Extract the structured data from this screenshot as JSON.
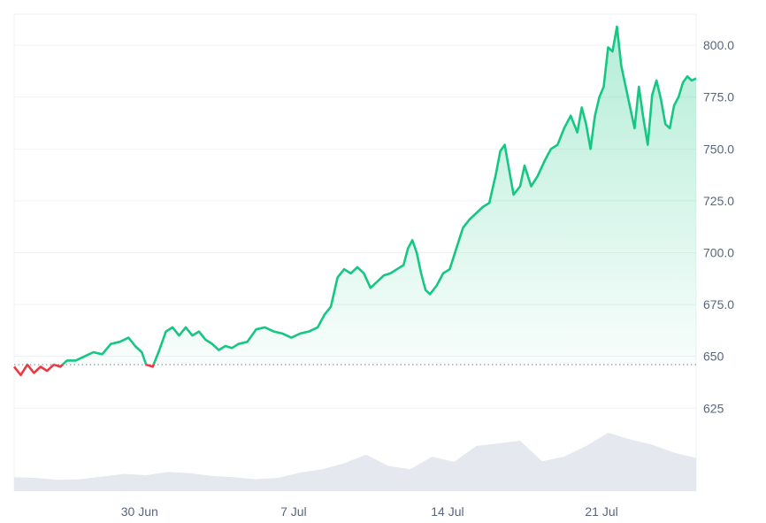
{
  "chart_data": {
    "type": "area",
    "title": "",
    "xlabel": "",
    "ylabel": "",
    "ylim": [
      585,
      815
    ],
    "reference_value": 646,
    "x_ticks": [
      {
        "label": "30 Jun",
        "t": 5.7
      },
      {
        "label": "7 Jul",
        "t": 12.7
      },
      {
        "label": "14 Jul",
        "t": 19.7
      },
      {
        "label": "21 Jul",
        "t": 26.7
      }
    ],
    "y_ticks": [
      {
        "label": "800.0",
        "value": 800
      },
      {
        "label": "775.0",
        "value": 775
      },
      {
        "label": "750.0",
        "value": 750
      },
      {
        "label": "725.0",
        "value": 725
      },
      {
        "label": "700.0",
        "value": 700
      },
      {
        "label": "675.0",
        "value": 675
      },
      {
        "label": "650",
        "value": 650
      },
      {
        "label": "625",
        "value": 625
      }
    ],
    "x_range": [
      0,
      31
    ],
    "price_series": [
      {
        "t": 0.0,
        "v": 645
      },
      {
        "t": 0.3,
        "v": 641
      },
      {
        "t": 0.6,
        "v": 646
      },
      {
        "t": 0.9,
        "v": 642
      },
      {
        "t": 1.2,
        "v": 645
      },
      {
        "t": 1.5,
        "v": 643
      },
      {
        "t": 1.8,
        "v": 646
      },
      {
        "t": 2.1,
        "v": 645
      },
      {
        "t": 2.4,
        "v": 648
      },
      {
        "t": 2.8,
        "v": 648
      },
      {
        "t": 3.2,
        "v": 650
      },
      {
        "t": 3.6,
        "v": 652
      },
      {
        "t": 4.0,
        "v": 651
      },
      {
        "t": 4.4,
        "v": 656
      },
      {
        "t": 4.8,
        "v": 657
      },
      {
        "t": 5.2,
        "v": 659
      },
      {
        "t": 5.5,
        "v": 655
      },
      {
        "t": 5.8,
        "v": 652
      },
      {
        "t": 6.0,
        "v": 646
      },
      {
        "t": 6.3,
        "v": 645
      },
      {
        "t": 6.6,
        "v": 653
      },
      {
        "t": 6.9,
        "v": 662
      },
      {
        "t": 7.2,
        "v": 664
      },
      {
        "t": 7.5,
        "v": 660
      },
      {
        "t": 7.8,
        "v": 664
      },
      {
        "t": 8.1,
        "v": 660
      },
      {
        "t": 8.4,
        "v": 662
      },
      {
        "t": 8.7,
        "v": 658
      },
      {
        "t": 9.0,
        "v": 656
      },
      {
        "t": 9.3,
        "v": 653
      },
      {
        "t": 9.6,
        "v": 655
      },
      {
        "t": 9.9,
        "v": 654
      },
      {
        "t": 10.2,
        "v": 656
      },
      {
        "t": 10.6,
        "v": 657
      },
      {
        "t": 11.0,
        "v": 663
      },
      {
        "t": 11.4,
        "v": 664
      },
      {
        "t": 11.8,
        "v": 662
      },
      {
        "t": 12.2,
        "v": 661
      },
      {
        "t": 12.6,
        "v": 659
      },
      {
        "t": 13.0,
        "v": 661
      },
      {
        "t": 13.4,
        "v": 662
      },
      {
        "t": 13.8,
        "v": 664
      },
      {
        "t": 14.1,
        "v": 670
      },
      {
        "t": 14.4,
        "v": 674
      },
      {
        "t": 14.7,
        "v": 688
      },
      {
        "t": 15.0,
        "v": 692
      },
      {
        "t": 15.3,
        "v": 690
      },
      {
        "t": 15.6,
        "v": 693
      },
      {
        "t": 15.9,
        "v": 690
      },
      {
        "t": 16.2,
        "v": 683
      },
      {
        "t": 16.5,
        "v": 686
      },
      {
        "t": 16.8,
        "v": 689
      },
      {
        "t": 17.1,
        "v": 690
      },
      {
        "t": 17.4,
        "v": 692
      },
      {
        "t": 17.7,
        "v": 694
      },
      {
        "t": 17.9,
        "v": 702
      },
      {
        "t": 18.1,
        "v": 706
      },
      {
        "t": 18.3,
        "v": 700
      },
      {
        "t": 18.5,
        "v": 690
      },
      {
        "t": 18.7,
        "v": 682
      },
      {
        "t": 18.9,
        "v": 680
      },
      {
        "t": 19.2,
        "v": 684
      },
      {
        "t": 19.5,
        "v": 690
      },
      {
        "t": 19.8,
        "v": 692
      },
      {
        "t": 20.1,
        "v": 702
      },
      {
        "t": 20.4,
        "v": 712
      },
      {
        "t": 20.7,
        "v": 716
      },
      {
        "t": 21.0,
        "v": 719
      },
      {
        "t": 21.3,
        "v": 722
      },
      {
        "t": 21.6,
        "v": 724
      },
      {
        "t": 21.9,
        "v": 738
      },
      {
        "t": 22.1,
        "v": 749
      },
      {
        "t": 22.3,
        "v": 752
      },
      {
        "t": 22.5,
        "v": 740
      },
      {
        "t": 22.7,
        "v": 728
      },
      {
        "t": 23.0,
        "v": 732
      },
      {
        "t": 23.2,
        "v": 742
      },
      {
        "t": 23.5,
        "v": 732
      },
      {
        "t": 23.8,
        "v": 737
      },
      {
        "t": 24.1,
        "v": 744
      },
      {
        "t": 24.4,
        "v": 750
      },
      {
        "t": 24.7,
        "v": 752
      },
      {
        "t": 25.0,
        "v": 760
      },
      {
        "t": 25.3,
        "v": 766
      },
      {
        "t": 25.6,
        "v": 758
      },
      {
        "t": 25.8,
        "v": 770
      },
      {
        "t": 26.0,
        "v": 762
      },
      {
        "t": 26.2,
        "v": 750
      },
      {
        "t": 26.4,
        "v": 766
      },
      {
        "t": 26.6,
        "v": 775
      },
      {
        "t": 26.8,
        "v": 780
      },
      {
        "t": 27.0,
        "v": 799
      },
      {
        "t": 27.2,
        "v": 797
      },
      {
        "t": 27.4,
        "v": 809
      },
      {
        "t": 27.6,
        "v": 790
      },
      {
        "t": 27.8,
        "v": 780
      },
      {
        "t": 28.0,
        "v": 770
      },
      {
        "t": 28.2,
        "v": 760
      },
      {
        "t": 28.4,
        "v": 780
      },
      {
        "t": 28.6,
        "v": 765
      },
      {
        "t": 28.8,
        "v": 752
      },
      {
        "t": 29.0,
        "v": 776
      },
      {
        "t": 29.2,
        "v": 783
      },
      {
        "t": 29.4,
        "v": 774
      },
      {
        "t": 29.6,
        "v": 762
      },
      {
        "t": 29.8,
        "v": 760
      },
      {
        "t": 30.0,
        "v": 771
      },
      {
        "t": 30.2,
        "v": 775
      },
      {
        "t": 30.4,
        "v": 782
      },
      {
        "t": 30.6,
        "v": 785
      },
      {
        "t": 30.8,
        "v": 783
      },
      {
        "t": 31.0,
        "v": 784
      }
    ],
    "volume_series": [
      {
        "t": 0.0,
        "v": 0.21
      },
      {
        "t": 1.0,
        "v": 0.2
      },
      {
        "t": 2.0,
        "v": 0.17
      },
      {
        "t": 3.0,
        "v": 0.18
      },
      {
        "t": 4.0,
        "v": 0.22
      },
      {
        "t": 5.0,
        "v": 0.26
      },
      {
        "t": 6.0,
        "v": 0.24
      },
      {
        "t": 7.0,
        "v": 0.29
      },
      {
        "t": 8.0,
        "v": 0.27
      },
      {
        "t": 9.0,
        "v": 0.23
      },
      {
        "t": 10.0,
        "v": 0.21
      },
      {
        "t": 11.0,
        "v": 0.18
      },
      {
        "t": 12.0,
        "v": 0.2
      },
      {
        "t": 13.0,
        "v": 0.28
      },
      {
        "t": 14.0,
        "v": 0.33
      },
      {
        "t": 15.0,
        "v": 0.42
      },
      {
        "t": 16.0,
        "v": 0.55
      },
      {
        "t": 17.0,
        "v": 0.38
      },
      {
        "t": 18.0,
        "v": 0.33
      },
      {
        "t": 19.0,
        "v": 0.52
      },
      {
        "t": 20.0,
        "v": 0.44
      },
      {
        "t": 21.0,
        "v": 0.68
      },
      {
        "t": 22.0,
        "v": 0.72
      },
      {
        "t": 23.0,
        "v": 0.76
      },
      {
        "t": 24.0,
        "v": 0.45
      },
      {
        "t": 25.0,
        "v": 0.52
      },
      {
        "t": 26.0,
        "v": 0.68
      },
      {
        "t": 27.0,
        "v": 0.88
      },
      {
        "t": 28.0,
        "v": 0.78
      },
      {
        "t": 29.0,
        "v": 0.7
      },
      {
        "t": 30.0,
        "v": 0.58
      },
      {
        "t": 31.0,
        "v": 0.5
      }
    ]
  },
  "colors": {
    "up": "#16c784",
    "down": "#ea3943",
    "grid": "#eff2f5",
    "axis_text": "#58667e",
    "volume": "#e5e8ee",
    "reference_line": "#808a9d"
  }
}
